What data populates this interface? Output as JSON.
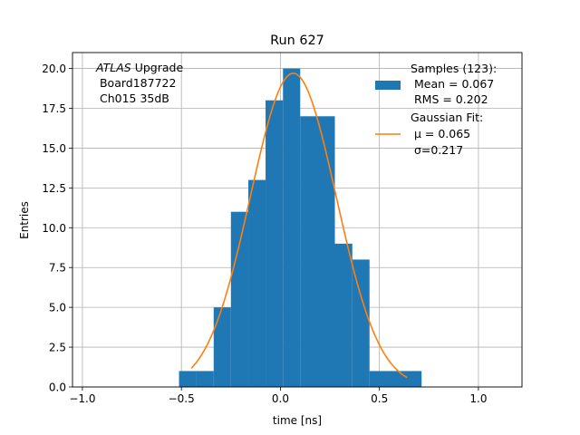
{
  "chart_data": {
    "type": "histogram",
    "title": "Run 627",
    "xlabel": "time [ns]",
    "ylabel": "Entries",
    "xlim": [
      -1.05,
      1.22
    ],
    "ylim": [
      0,
      21
    ],
    "grid": true,
    "xticks": [
      -1.0,
      -0.5,
      0.0,
      0.5,
      1.0
    ],
    "xtick_labels": [
      "−1.0",
      "−0.5",
      "0.0",
      "0.5",
      "1.0"
    ],
    "yticks": [
      0,
      2.5,
      5,
      7.5,
      10,
      12.5,
      15,
      17.5,
      20
    ],
    "ytick_labels": [
      "0.0",
      "2.5",
      "5.0",
      "7.5",
      "10.0",
      "12.5",
      "15.0",
      "17.5",
      "20.0"
    ],
    "bins": [
      {
        "x0": -0.512,
        "x1": -0.425,
        "count": 1
      },
      {
        "x0": -0.425,
        "x1": -0.337,
        "count": 1
      },
      {
        "x0": -0.337,
        "x1": -0.25,
        "count": 5
      },
      {
        "x0": -0.25,
        "x1": -0.162,
        "count": 11
      },
      {
        "x0": -0.162,
        "x1": -0.075,
        "count": 13
      },
      {
        "x0": -0.075,
        "x1": 0.013,
        "count": 18
      },
      {
        "x0": 0.013,
        "x1": 0.1,
        "count": 20
      },
      {
        "x0": 0.1,
        "x1": 0.188,
        "count": 17
      },
      {
        "x0": 0.188,
        "x1": 0.275,
        "count": 17
      },
      {
        "x0": 0.275,
        "x1": 0.363,
        "count": 9
      },
      {
        "x0": 0.363,
        "x1": 0.45,
        "count": 8
      },
      {
        "x0": 0.45,
        "x1": 0.538,
        "count": 1
      },
      {
        "x0": 0.538,
        "x1": 0.625,
        "count": 1
      },
      {
        "x0": 0.625,
        "x1": 0.713,
        "count": 1
      }
    ],
    "fit": {
      "type": "gaussian",
      "mu": 0.065,
      "sigma": 0.217,
      "amplitude": 19.7,
      "x_range": [
        -0.45,
        0.64
      ]
    },
    "colors": {
      "histogram": "#1f77b4",
      "fit": "#ff7f0e",
      "grid": "#b0b0b0"
    },
    "info_text": {
      "lines": [
        "ATLAS Upgrade",
        " Board187722",
        " Ch015 35dB"
      ],
      "italic_word": "ATLAS",
      "position": "top-left"
    },
    "legend": {
      "position": "top-right",
      "entries": [
        {
          "kind": "patch",
          "lines": [
            "Samples (123):",
            " Mean = 0.067",
            " RMS = 0.202"
          ]
        },
        {
          "kind": "line",
          "lines": [
            "Gaussian Fit:",
            " μ = 0.065",
            " σ=0.217"
          ]
        }
      ]
    }
  }
}
